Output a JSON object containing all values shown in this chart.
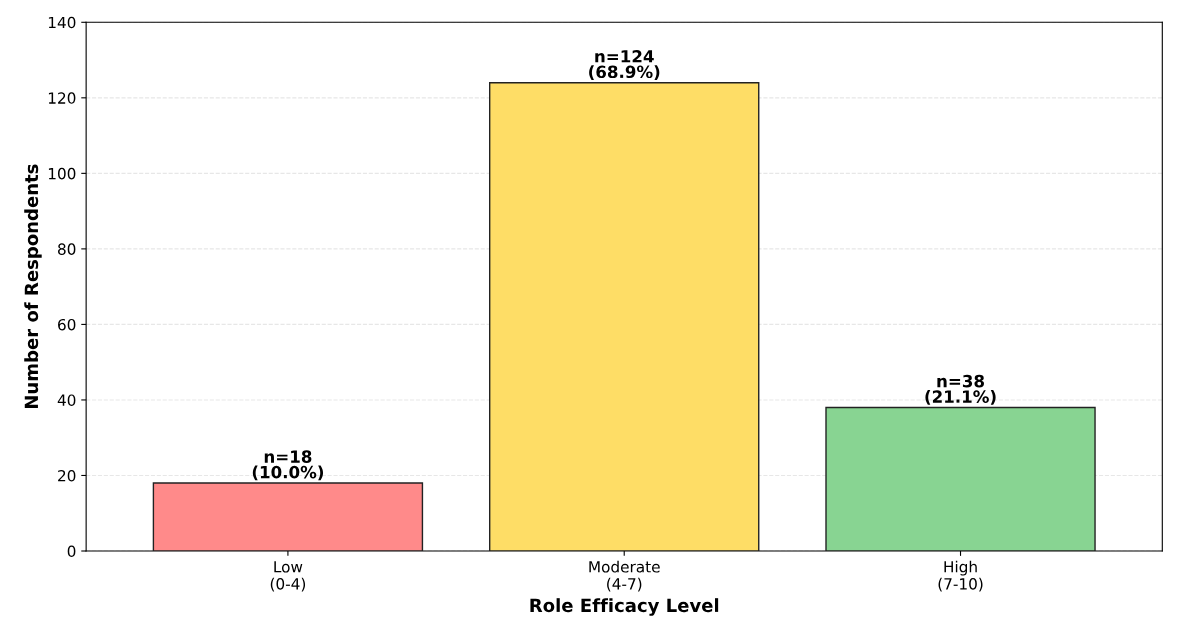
{
  "chart_data": {
    "type": "bar",
    "xlabel": "Role Efficacy Level",
    "ylabel": "Number of Respondents",
    "categories": [
      "Low\n(0-4)",
      "Moderate\n(4-7)",
      "High\n(7-10)"
    ],
    "values": [
      18,
      124,
      38
    ],
    "colors": [
      "#ff8a8a",
      "#fedd66",
      "#88d492"
    ],
    "value_labels": [
      "n=18\n(10.0%)",
      "n=124\n(68.9%)",
      "n=38\n(21.1%)"
    ],
    "ylim": [
      0,
      140
    ],
    "yticks": [
      0,
      20,
      40,
      60,
      80,
      100,
      120,
      140
    ],
    "grid": "y"
  }
}
